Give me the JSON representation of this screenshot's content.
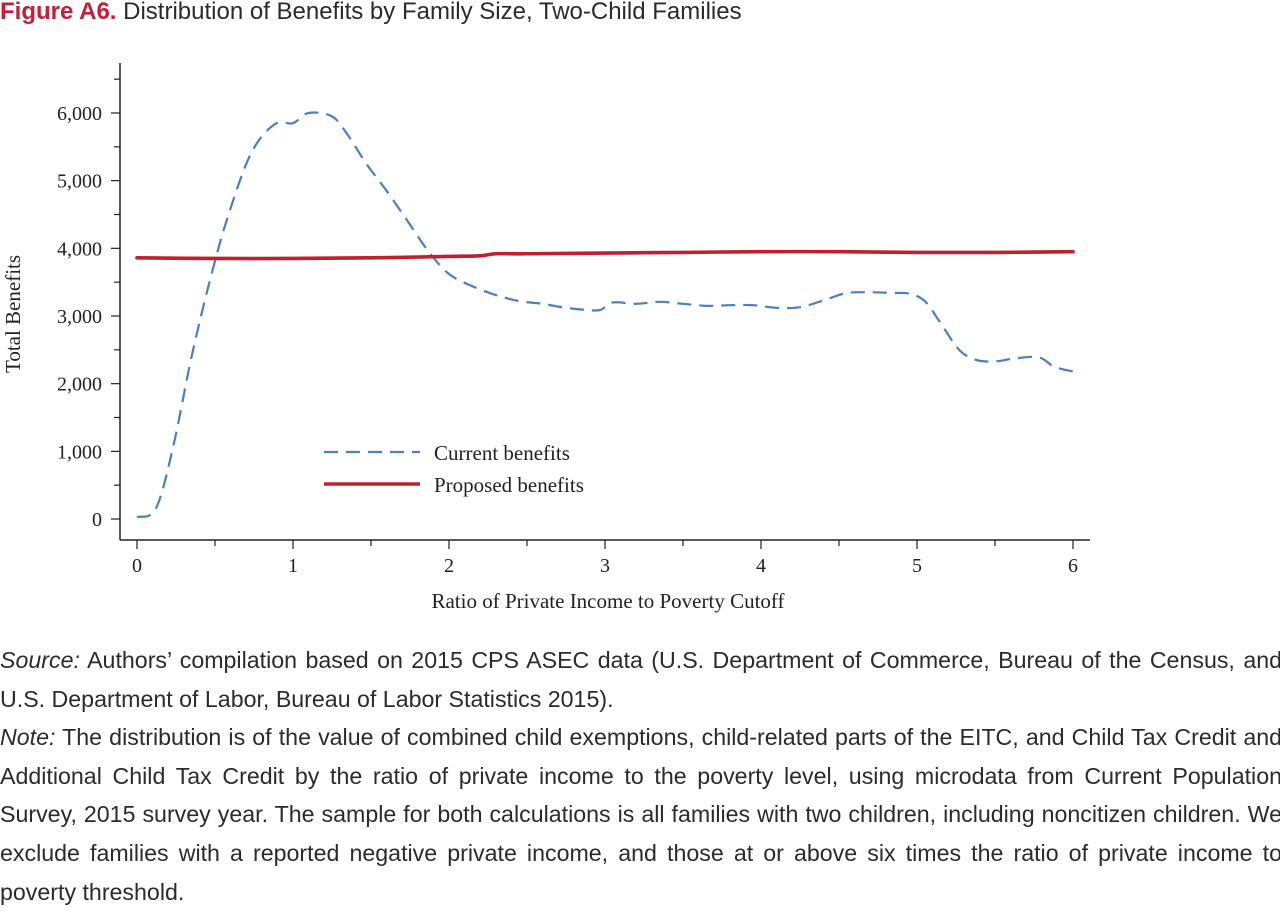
{
  "figure": {
    "label": "Figure A6.",
    "title": "Distribution of Benefits by Family Size, Two-Child Families"
  },
  "source": {
    "label": "Source:",
    "text": "Authors’ compilation based on 2015 CPS ASEC data (U.S. Department of Commerce, Bureau of the Census, and U.S. Department of Labor, Bureau of Labor Statistics 2015)."
  },
  "note": {
    "label": "Note:",
    "text": "The distribution is of the value of combined child exemptions, child-related parts of the EITC, and Child Tax Credit and Additional Child Tax Credit by the ratio of private income to the poverty level, using microdata from Current Population Survey, 2015 survey year. The sample for both calculations is all families with two children, including noncitizen children. We exclude families with a reported negative private income, and those at or above six times the ratio of private income to poverty threshold."
  },
  "colors": {
    "accent": "#c41e3a",
    "current": "#4a7fc1",
    "proposed": "#c0202e",
    "axis": "#222222"
  },
  "chart_data": {
    "type": "line",
    "xlabel": "Ratio of Private Income to Poverty Cutoff",
    "ylabel": "Total Benefits",
    "xlim": [
      0,
      6
    ],
    "ylim": [
      0,
      6500
    ],
    "xticks": [
      0,
      1,
      2,
      3,
      4,
      5,
      6
    ],
    "xtick_labels": [
      "0",
      "1",
      "2",
      "3",
      "4",
      "5",
      "6"
    ],
    "yticks": [
      0,
      1000,
      2000,
      3000,
      4000,
      5000,
      6000
    ],
    "ytick_labels": [
      "0",
      "1,000",
      "2,000",
      "3,000",
      "4,000",
      "5,000",
      "6,000"
    ],
    "legend_position": "lower-center",
    "grid": false,
    "series": [
      {
        "name": "Current benefits",
        "style": "dashed",
        "color": "#4a7fc1",
        "x": [
          0,
          0.12,
          0.23,
          0.35,
          0.47,
          0.58,
          0.73,
          0.88,
          1.0,
          1.1,
          1.25,
          1.35,
          1.47,
          1.6,
          1.75,
          1.87,
          2.0,
          2.15,
          2.3,
          2.45,
          2.6,
          2.75,
          2.88,
          2.97,
          3.05,
          3.2,
          3.35,
          3.5,
          3.65,
          3.8,
          3.95,
          4.1,
          4.25,
          4.4,
          4.55,
          4.7,
          4.85,
          4.95,
          5.05,
          5.15,
          5.27,
          5.38,
          5.5,
          5.62,
          5.78,
          5.88,
          6.0
        ],
        "values": [
          30,
          150,
          1050,
          2400,
          3550,
          4450,
          5400,
          5830,
          5850,
          6000,
          5950,
          5680,
          5250,
          4850,
          4350,
          3950,
          3620,
          3440,
          3310,
          3220,
          3180,
          3120,
          3090,
          3090,
          3200,
          3180,
          3210,
          3180,
          3150,
          3160,
          3160,
          3120,
          3130,
          3230,
          3340,
          3350,
          3340,
          3330,
          3220,
          2900,
          2500,
          2350,
          2330,
          2370,
          2390,
          2250,
          2180
        ]
      },
      {
        "name": "Proposed benefits",
        "style": "solid",
        "color": "#c0202e",
        "x": [
          0,
          0.5,
          1.0,
          1.5,
          2.0,
          2.2,
          2.3,
          2.5,
          3.0,
          3.5,
          4.0,
          4.5,
          5.0,
          5.5,
          6.0
        ],
        "values": [
          3860,
          3850,
          3850,
          3860,
          3880,
          3890,
          3920,
          3920,
          3930,
          3940,
          3950,
          3950,
          3940,
          3940,
          3950
        ]
      }
    ]
  }
}
